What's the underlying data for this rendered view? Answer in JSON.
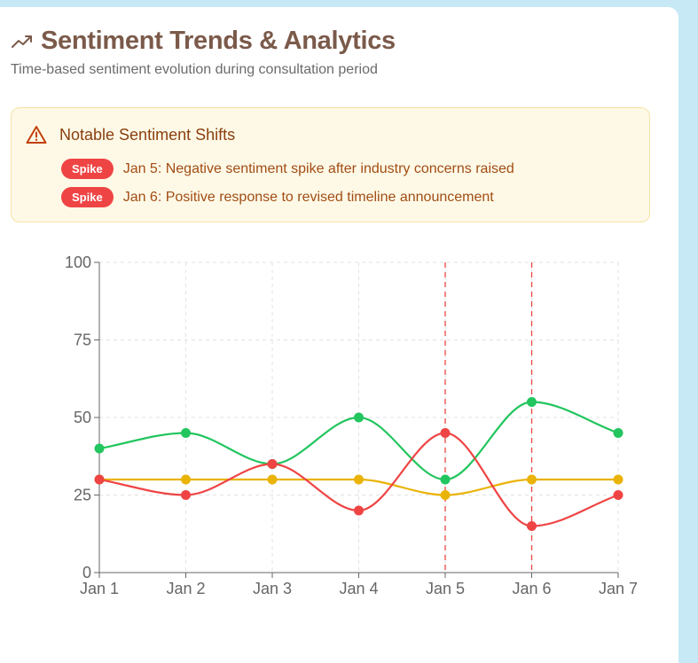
{
  "header": {
    "title": "Sentiment Trends & Analytics",
    "subtitle": "Time-based sentiment evolution during consultation period",
    "icon": "trending-up-icon"
  },
  "alert": {
    "title": "Notable Sentiment Shifts",
    "icon": "warning-triangle-icon",
    "items": [
      {
        "badge": "Spike",
        "text": "Jan 5: Negative sentiment spike after industry concerns raised"
      },
      {
        "badge": "Spike",
        "text": "Jan 6: Positive response to revised timeline announcement"
      }
    ]
  },
  "colors": {
    "positive": "#22c55e",
    "neutral": "#eab308",
    "negative": "#ef4444",
    "badge": "#ef4444"
  },
  "chart_data": {
    "type": "line",
    "categories": [
      "Jan 1",
      "Jan 2",
      "Jan 3",
      "Jan 4",
      "Jan 5",
      "Jan 6",
      "Jan 7"
    ],
    "series": [
      {
        "values": [
          40,
          45,
          35,
          50,
          30,
          55,
          45
        ],
        "color": "#22c55e"
      },
      {
        "values": [
          30,
          30,
          30,
          30,
          25,
          30,
          30
        ],
        "color": "#eab308"
      },
      {
        "values": [
          30,
          25,
          35,
          20,
          45,
          15,
          25
        ],
        "color": "#ef4444"
      }
    ],
    "ylim": [
      0,
      100
    ],
    "yticks": [
      0,
      25,
      50,
      75,
      100
    ],
    "grid": true,
    "reference_lines": [
      "Jan 5",
      "Jan 6"
    ],
    "reference_line_color": "#ef4444"
  }
}
